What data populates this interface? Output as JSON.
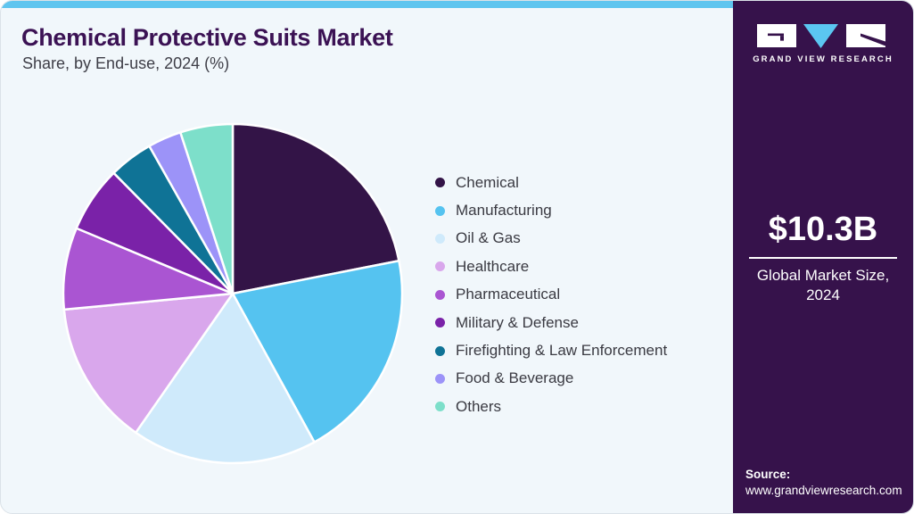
{
  "header": {
    "title": "Chemical Protective Suits Market",
    "subtitle": "Share, by End-use, 2024 (%)"
  },
  "chart_data": {
    "type": "pie",
    "title": "Chemical Protective Suits Market Share, by End-use, 2024 (%)",
    "unit": "%",
    "start_angle_deg": 0,
    "direction": "clockwise",
    "legend_position": "right",
    "slices": [
      {
        "label": "Chemical",
        "value": 21.9,
        "color": "#331447"
      },
      {
        "label": "Manufacturing",
        "value": 20.1,
        "color": "#55c3f0"
      },
      {
        "label": "Oil & Gas",
        "value": 17.7,
        "color": "#cfeafb"
      },
      {
        "label": "Healthcare",
        "value": 13.8,
        "color": "#d9a7ec"
      },
      {
        "label": "Pharmaceutical",
        "value": 7.8,
        "color": "#aa55d2"
      },
      {
        "label": "Military & Defense",
        "value": 6.3,
        "color": "#7a22a8"
      },
      {
        "label": "Firefighting & Law Enforcement",
        "value": 4.2,
        "color": "#0f7396"
      },
      {
        "label": "Food & Beverage",
        "value": 3.2,
        "color": "#9c93f8"
      },
      {
        "label": "Others",
        "value": 5.0,
        "color": "#7ddfca"
      }
    ]
  },
  "sidebar": {
    "wordmark": "GRAND VIEW RESEARCH",
    "market_size_value": "$10.3B",
    "market_size_label_line1": "Global Market Size,",
    "market_size_label_line2": "2024",
    "source_label": "Source:",
    "source_url": "www.grandviewresearch.com"
  },
  "colors": {
    "accent_strip": "#5fc5ef",
    "card_bg": "#f1f7fb",
    "sidebar_bg": "#36124b",
    "title_text": "#3b1254",
    "body_text": "#3a3a42",
    "logo_triangle": "#5bc6f1",
    "slice_gap_stroke": "#ffffff"
  }
}
